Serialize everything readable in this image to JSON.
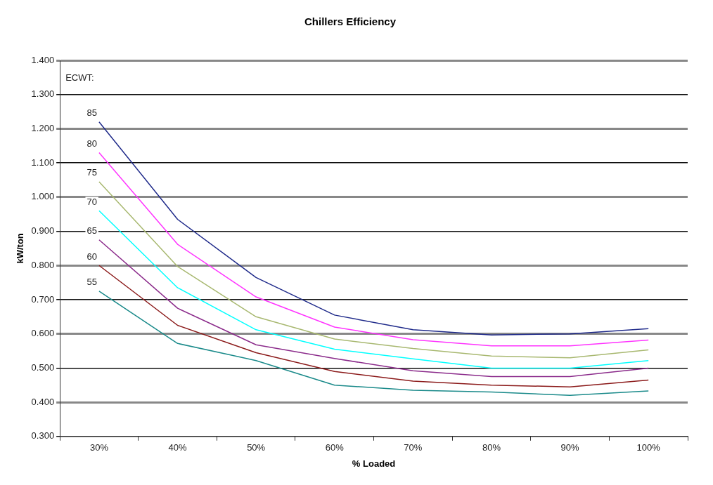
{
  "chart_data": {
    "type": "line",
    "title": "Chillers Efficiency",
    "xlabel": "% Loaded",
    "ylabel": "kW/ton",
    "annotations": [
      "ECWT:"
    ],
    "categories": [
      "30%",
      "40%",
      "50%",
      "60%",
      "70%",
      "80%",
      "90%",
      "100%"
    ],
    "ylim": [
      0.3,
      1.4
    ],
    "yticks": [
      {
        "value": 0.3,
        "label": "0.300"
      },
      {
        "value": 0.4,
        "label": "0.400"
      },
      {
        "value": 0.5,
        "label": "0.500"
      },
      {
        "value": 0.6,
        "label": "0.600"
      },
      {
        "value": 0.7,
        "label": "0.700"
      },
      {
        "value": 0.8,
        "label": "0.800"
      },
      {
        "value": 0.9,
        "label": "0.900"
      },
      {
        "value": 1.0,
        "label": "1.000"
      },
      {
        "value": 1.1,
        "label": "1.100"
      },
      {
        "value": 1.2,
        "label": "1.200"
      },
      {
        "value": 1.3,
        "label": "1.300"
      },
      {
        "value": 1.4,
        "label": "1.400"
      }
    ],
    "grid": "y",
    "legend": false,
    "marker": "none",
    "line_style": "solid",
    "series": [
      {
        "name": "85",
        "color": "#1f2a8a",
        "values": [
          1.22,
          0.935,
          0.765,
          0.655,
          0.612,
          0.597,
          0.6,
          0.615
        ]
      },
      {
        "name": "80",
        "color": "#ff33ff",
        "values": [
          1.13,
          0.862,
          0.708,
          0.62,
          0.583,
          0.565,
          0.565,
          0.582
        ]
      },
      {
        "name": "75",
        "color": "#a8b870",
        "values": [
          1.045,
          0.797,
          0.65,
          0.585,
          0.557,
          0.535,
          0.53,
          0.553
        ]
      },
      {
        "name": "70",
        "color": "#00ffff",
        "values": [
          0.96,
          0.735,
          0.612,
          0.555,
          0.527,
          0.5,
          0.5,
          0.522
        ]
      },
      {
        "name": "65",
        "color": "#8b2b8b",
        "values": [
          0.875,
          0.675,
          0.568,
          0.528,
          0.492,
          0.475,
          0.475,
          0.5
        ]
      },
      {
        "name": "60",
        "color": "#8b1a1a",
        "values": [
          0.8,
          0.625,
          0.545,
          0.49,
          0.462,
          0.45,
          0.445,
          0.465
        ]
      },
      {
        "name": "55",
        "color": "#1a8a8a",
        "values": [
          0.725,
          0.572,
          0.522,
          0.45,
          0.435,
          0.43,
          0.42,
          0.433
        ]
      }
    ]
  }
}
